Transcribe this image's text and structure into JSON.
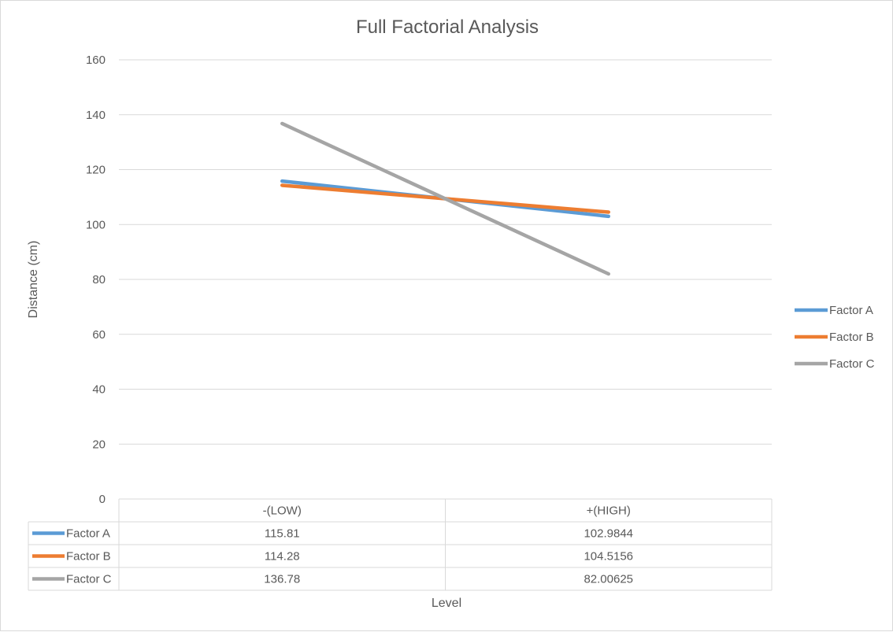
{
  "chart_data": {
    "type": "line",
    "title": "Full Factorial Analysis",
    "xlabel": "Level",
    "ylabel": "Distance (cm)",
    "categories": [
      "-(LOW)",
      "+(HIGH)"
    ],
    "ylim": [
      0,
      160
    ],
    "yticks": [
      0,
      20,
      40,
      60,
      80,
      100,
      120,
      140,
      160
    ],
    "grid": true,
    "legend": "right",
    "data_table": true,
    "series": [
      {
        "name": "Factor A",
        "values": [
          115.81,
          102.9844
        ],
        "labels": [
          "115.81",
          "102.9844"
        ],
        "color": "#5B9BD5"
      },
      {
        "name": "Factor B",
        "values": [
          114.28,
          104.5156
        ],
        "labels": [
          "114.28",
          "104.5156"
        ],
        "color": "#ED7D31"
      },
      {
        "name": "Factor C",
        "values": [
          136.78,
          82.00625
        ],
        "labels": [
          "136.78",
          "82.00625"
        ],
        "color": "#A5A5A5"
      }
    ]
  }
}
